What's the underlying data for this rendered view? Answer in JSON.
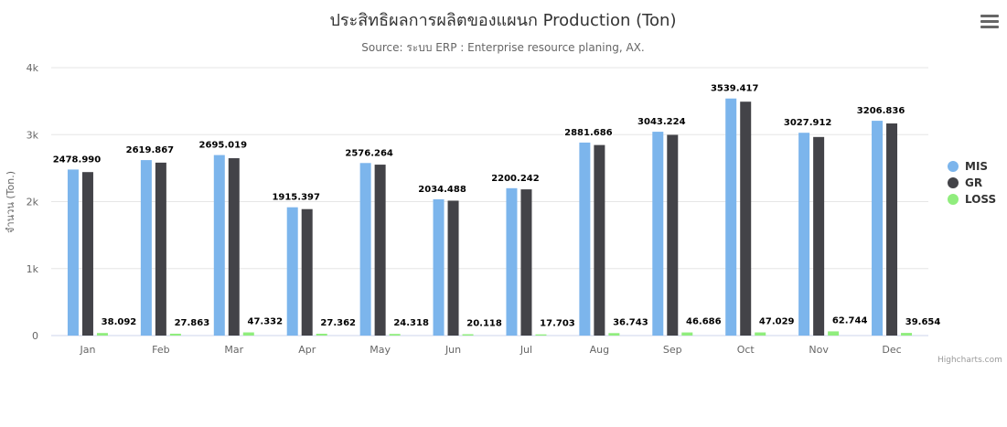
{
  "menu_icon": "hamburger-menu-icon",
  "credits": "Highcharts.com",
  "chart_data": {
    "type": "bar",
    "title": "ประสิทธิผลการผลิตของแผนก Production (Ton)",
    "subtitle": "Source: ระบบ ERP : Enterprise resource planing, AX.",
    "ylabel": "จำนวน (Ton.)",
    "xlabel": "",
    "ylim": [
      0,
      4000
    ],
    "y_ticks": [
      0,
      1000,
      2000,
      3000,
      4000
    ],
    "y_tick_labels": [
      "0",
      "1k",
      "2k",
      "3k",
      "4k"
    ],
    "grid": true,
    "legend_position": "right",
    "categories": [
      "Jan",
      "Feb",
      "Mar",
      "Apr",
      "May",
      "Jun",
      "Jul",
      "Aug",
      "Sep",
      "Oct",
      "Nov",
      "Dec"
    ],
    "series": [
      {
        "name": "MIS",
        "color": "#7cb5ec",
        "values": [
          2478.99,
          2619.867,
          2695.019,
          1915.397,
          2576.264,
          2034.488,
          2200.242,
          2881.686,
          3043.224,
          3539.417,
          3027.912,
          3206.836
        ],
        "labels": [
          "2478.990",
          "2619.867",
          "2695.019",
          "1915.397",
          "2576.264",
          "2034.488",
          "2200.242",
          "2881.686",
          "3043.224",
          "3539.417",
          "3027.912",
          "3206.836"
        ]
      },
      {
        "name": "GR",
        "color": "#434348",
        "values": [
          2441,
          2582,
          2648,
          1888,
          2552,
          2014,
          2183,
          2845,
          2997,
          3492,
          2965,
          3167
        ],
        "labels": []
      },
      {
        "name": "LOSS",
        "color": "#90ed7d",
        "values": [
          38.092,
          27.863,
          47.332,
          27.362,
          24.318,
          20.118,
          17.703,
          36.743,
          46.686,
          47.029,
          62.744,
          39.654
        ],
        "labels": [
          "38.092",
          "27.863",
          "47.332",
          "27.362",
          "24.318",
          "20.118",
          "17.703",
          "36.743",
          "46.686",
          "47.029",
          "62.744",
          "39.654"
        ]
      }
    ]
  }
}
